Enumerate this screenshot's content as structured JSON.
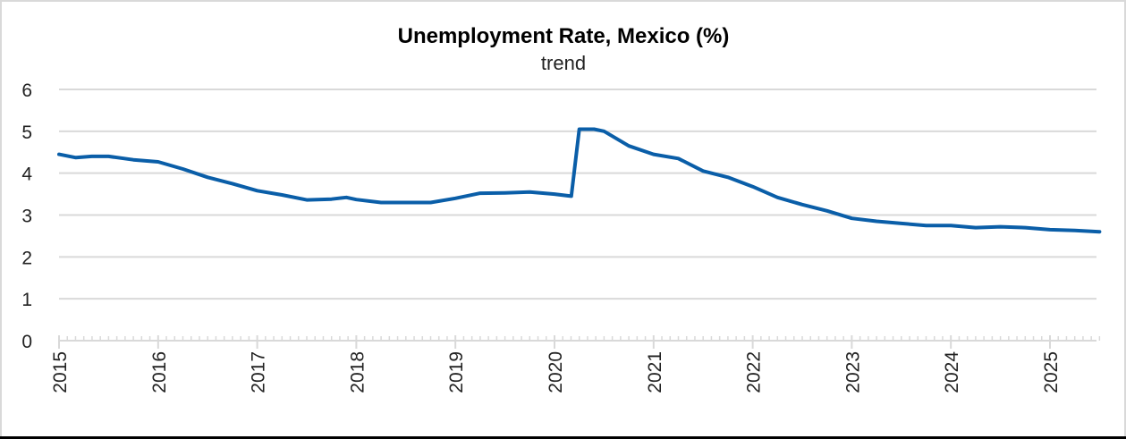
{
  "chart_data": {
    "type": "line",
    "title": "Unemployment Rate, Mexico (%)",
    "subtitle": "trend",
    "xlabel": "",
    "ylabel": "",
    "ylim": [
      0,
      6
    ],
    "xlim": [
      2015.0,
      2025.5
    ],
    "grid": true,
    "legend": null,
    "y_ticks": [
      "0",
      "1",
      "2",
      "3",
      "4",
      "5",
      "6"
    ],
    "x_ticks": [
      "2015",
      "2016",
      "2017",
      "2018",
      "2019",
      "2020",
      "2021",
      "2022",
      "2023",
      "2024",
      "2025"
    ],
    "series": [
      {
        "name": "Unemployment Rate, Mexico (%)",
        "color": "#0a5ea8",
        "x": [
          2015.0,
          2015.17,
          2015.33,
          2015.5,
          2015.75,
          2016.0,
          2016.25,
          2016.5,
          2016.75,
          2017.0,
          2017.25,
          2017.5,
          2017.75,
          2017.9,
          2018.0,
          2018.25,
          2018.5,
          2018.75,
          2019.0,
          2019.25,
          2019.5,
          2019.75,
          2020.0,
          2020.17,
          2020.25,
          2020.4,
          2020.5,
          2020.75,
          2021.0,
          2021.25,
          2021.5,
          2021.75,
          2022.0,
          2022.25,
          2022.5,
          2022.75,
          2023.0,
          2023.25,
          2023.5,
          2023.75,
          2024.0,
          2024.25,
          2024.5,
          2024.75,
          2025.0,
          2025.25,
          2025.5
        ],
        "values": [
          4.45,
          4.37,
          4.4,
          4.4,
          4.32,
          4.27,
          4.1,
          3.9,
          3.75,
          3.58,
          3.48,
          3.36,
          3.38,
          3.42,
          3.37,
          3.3,
          3.3,
          3.3,
          3.4,
          3.52,
          3.53,
          3.55,
          3.5,
          3.45,
          5.05,
          5.05,
          5.0,
          4.65,
          4.45,
          4.35,
          4.05,
          3.9,
          3.68,
          3.42,
          3.25,
          3.1,
          2.92,
          2.85,
          2.8,
          2.75,
          2.75,
          2.7,
          2.72,
          2.7,
          2.65,
          2.63,
          2.6
        ]
      }
    ]
  },
  "colors": {
    "line": "#0a5ea8",
    "grid": "#d9d9d9",
    "axis": "#d9d9d9",
    "frame": "#d9d9d9",
    "background": "#ffffff"
  }
}
